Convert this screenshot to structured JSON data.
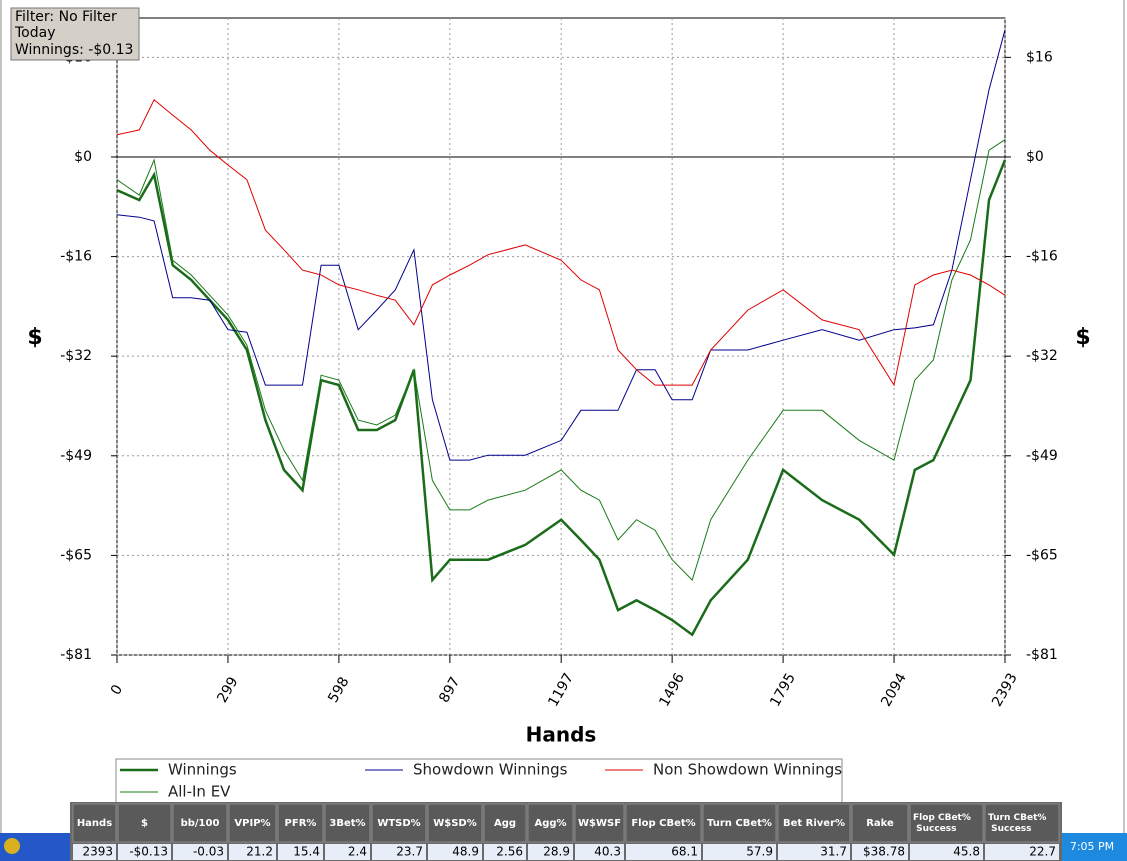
{
  "filter_box": {
    "lines": [
      "Filter: No Filter",
      "Today",
      "Winnings: -$0.13"
    ]
  },
  "chart_data": {
    "type": "line",
    "xlabel": "Hands",
    "ylabel": "$",
    "x": [
      0,
      60,
      100,
      150,
      200,
      250,
      299,
      350,
      400,
      450,
      500,
      550,
      598,
      650,
      700,
      750,
      800,
      850,
      897,
      950,
      1000,
      1100,
      1197,
      1250,
      1300,
      1350,
      1400,
      1450,
      1496,
      1550,
      1600,
      1700,
      1795,
      1900,
      2000,
      2094,
      2150,
      2200,
      2250,
      2300,
      2350,
      2393
    ],
    "series": [
      {
        "name": "Winnings",
        "color": "#1a6b1a",
        "width": 2.5,
        "values": [
          -5.4,
          -7.0,
          -2.9,
          -17.6,
          -20.0,
          -23.3,
          -26.5,
          -31.4,
          -42.8,
          -50.9,
          -54.2,
          -36.3,
          -37.1,
          -44.4,
          -44.4,
          -42.8,
          -34.6,
          -68.8,
          -65.5,
          -65.5,
          -65.5,
          -63.1,
          -59.0,
          -62.3,
          -65.5,
          -73.7,
          -72.1,
          -73.7,
          -75.3,
          -77.7,
          -72.1,
          -65.5,
          -50.9,
          -55.8,
          -59.0,
          -64.7,
          -50.9,
          -49.3,
          -42.8,
          -36.3,
          -7.0,
          -0.5
        ]
      },
      {
        "name": "Showdown Winnings",
        "color": "#00008b",
        "width": 1,
        "values": [
          -9.4,
          -9.8,
          -10.4,
          -22.9,
          -22.9,
          -23.3,
          -28.1,
          -28.5,
          -37.1,
          -37.1,
          -37.1,
          -17.6,
          -17.6,
          -28.1,
          -24.9,
          -21.6,
          -15.1,
          -39.5,
          -49.3,
          -49.3,
          -48.5,
          -48.5,
          -46.1,
          -41.2,
          -41.2,
          -41.2,
          -34.6,
          -34.6,
          -39.5,
          -39.5,
          -31.4,
          -31.4,
          -29.8,
          -28.1,
          -29.8,
          -28.1,
          -27.8,
          -27.3,
          -18.4,
          -3.7,
          10.9,
          20.7
        ]
      },
      {
        "name": "Non Showdown Winnings",
        "color": "#e00000",
        "width": 1,
        "values": [
          3.6,
          4.4,
          9.3,
          6.8,
          4.4,
          1.1,
          -1.3,
          -3.7,
          -11.9,
          -15.1,
          -18.4,
          -19.2,
          -20.8,
          -21.6,
          -22.5,
          -23.3,
          -27.3,
          -20.8,
          -19.2,
          -17.6,
          -15.9,
          -14.3,
          -16.8,
          -20.0,
          -21.6,
          -31.4,
          -34.6,
          -37.1,
          -37.1,
          -37.1,
          -31.4,
          -24.9,
          -21.6,
          -26.5,
          -28.1,
          -37.1,
          -20.8,
          -19.2,
          -18.4,
          -19.2,
          -20.8,
          -22.5
        ]
      },
      {
        "name": "All-In EV",
        "color": "#1a7a1a",
        "width": 1,
        "values": [
          -3.7,
          -6.2,
          -0.5,
          -16.8,
          -19.2,
          -22.5,
          -25.7,
          -30.6,
          -41.2,
          -47.7,
          -52.6,
          -35.5,
          -36.3,
          -42.8,
          -43.6,
          -42.0,
          -34.6,
          -52.6,
          -57.4,
          -57.4,
          -55.8,
          -54.2,
          -50.9,
          -54.2,
          -55.8,
          -62.3,
          -59.0,
          -60.7,
          -65.5,
          -68.8,
          -59.0,
          -49.3,
          -41.2,
          -41.2,
          -46.1,
          -49.3,
          -36.3,
          -33.0,
          -20.0,
          -13.5,
          1.1,
          2.8
        ]
      }
    ],
    "xlim": [
      0,
      2393
    ],
    "xticks": [
      0,
      299,
      598,
      897,
      1197,
      1496,
      1795,
      2094,
      2393
    ],
    "ylim": [
      -81,
      22.6
    ],
    "yticks": [
      {
        "value": 16.2,
        "label": "$16"
      },
      {
        "value": 0,
        "label": "$0"
      },
      {
        "value": -16.2,
        "label": "-$16"
      },
      {
        "value": -32.4,
        "label": "-$32"
      },
      {
        "value": -48.6,
        "label": "-$49"
      },
      {
        "value": -64.8,
        "label": "-$65"
      },
      {
        "value": -81,
        "label": "-$81"
      }
    ],
    "grid": true
  },
  "stats_table": {
    "headers": [
      "Hands",
      "$",
      "bb/100",
      "VPIP%",
      "PFR%",
      "3Bet%",
      "WTSD%",
      "W$SD%",
      "Agg",
      "Agg%",
      "W$WSF",
      "Flop CBet%",
      "Turn CBet%",
      "Bet River%",
      "Rake",
      "Flop CBet% Success",
      "Turn CBet% Success"
    ],
    "rows": [
      [
        "2393",
        "-$0.13",
        "-0.03",
        "21.2",
        "15.4",
        "2.4",
        "23.7",
        "48.9",
        "2.56",
        "28.9",
        "40.3",
        "68.1",
        "57.9",
        "31.7",
        "$38.78",
        "45.8",
        "22.7"
      ]
    ]
  },
  "taskbar": {
    "clock": "7:05 PM"
  }
}
